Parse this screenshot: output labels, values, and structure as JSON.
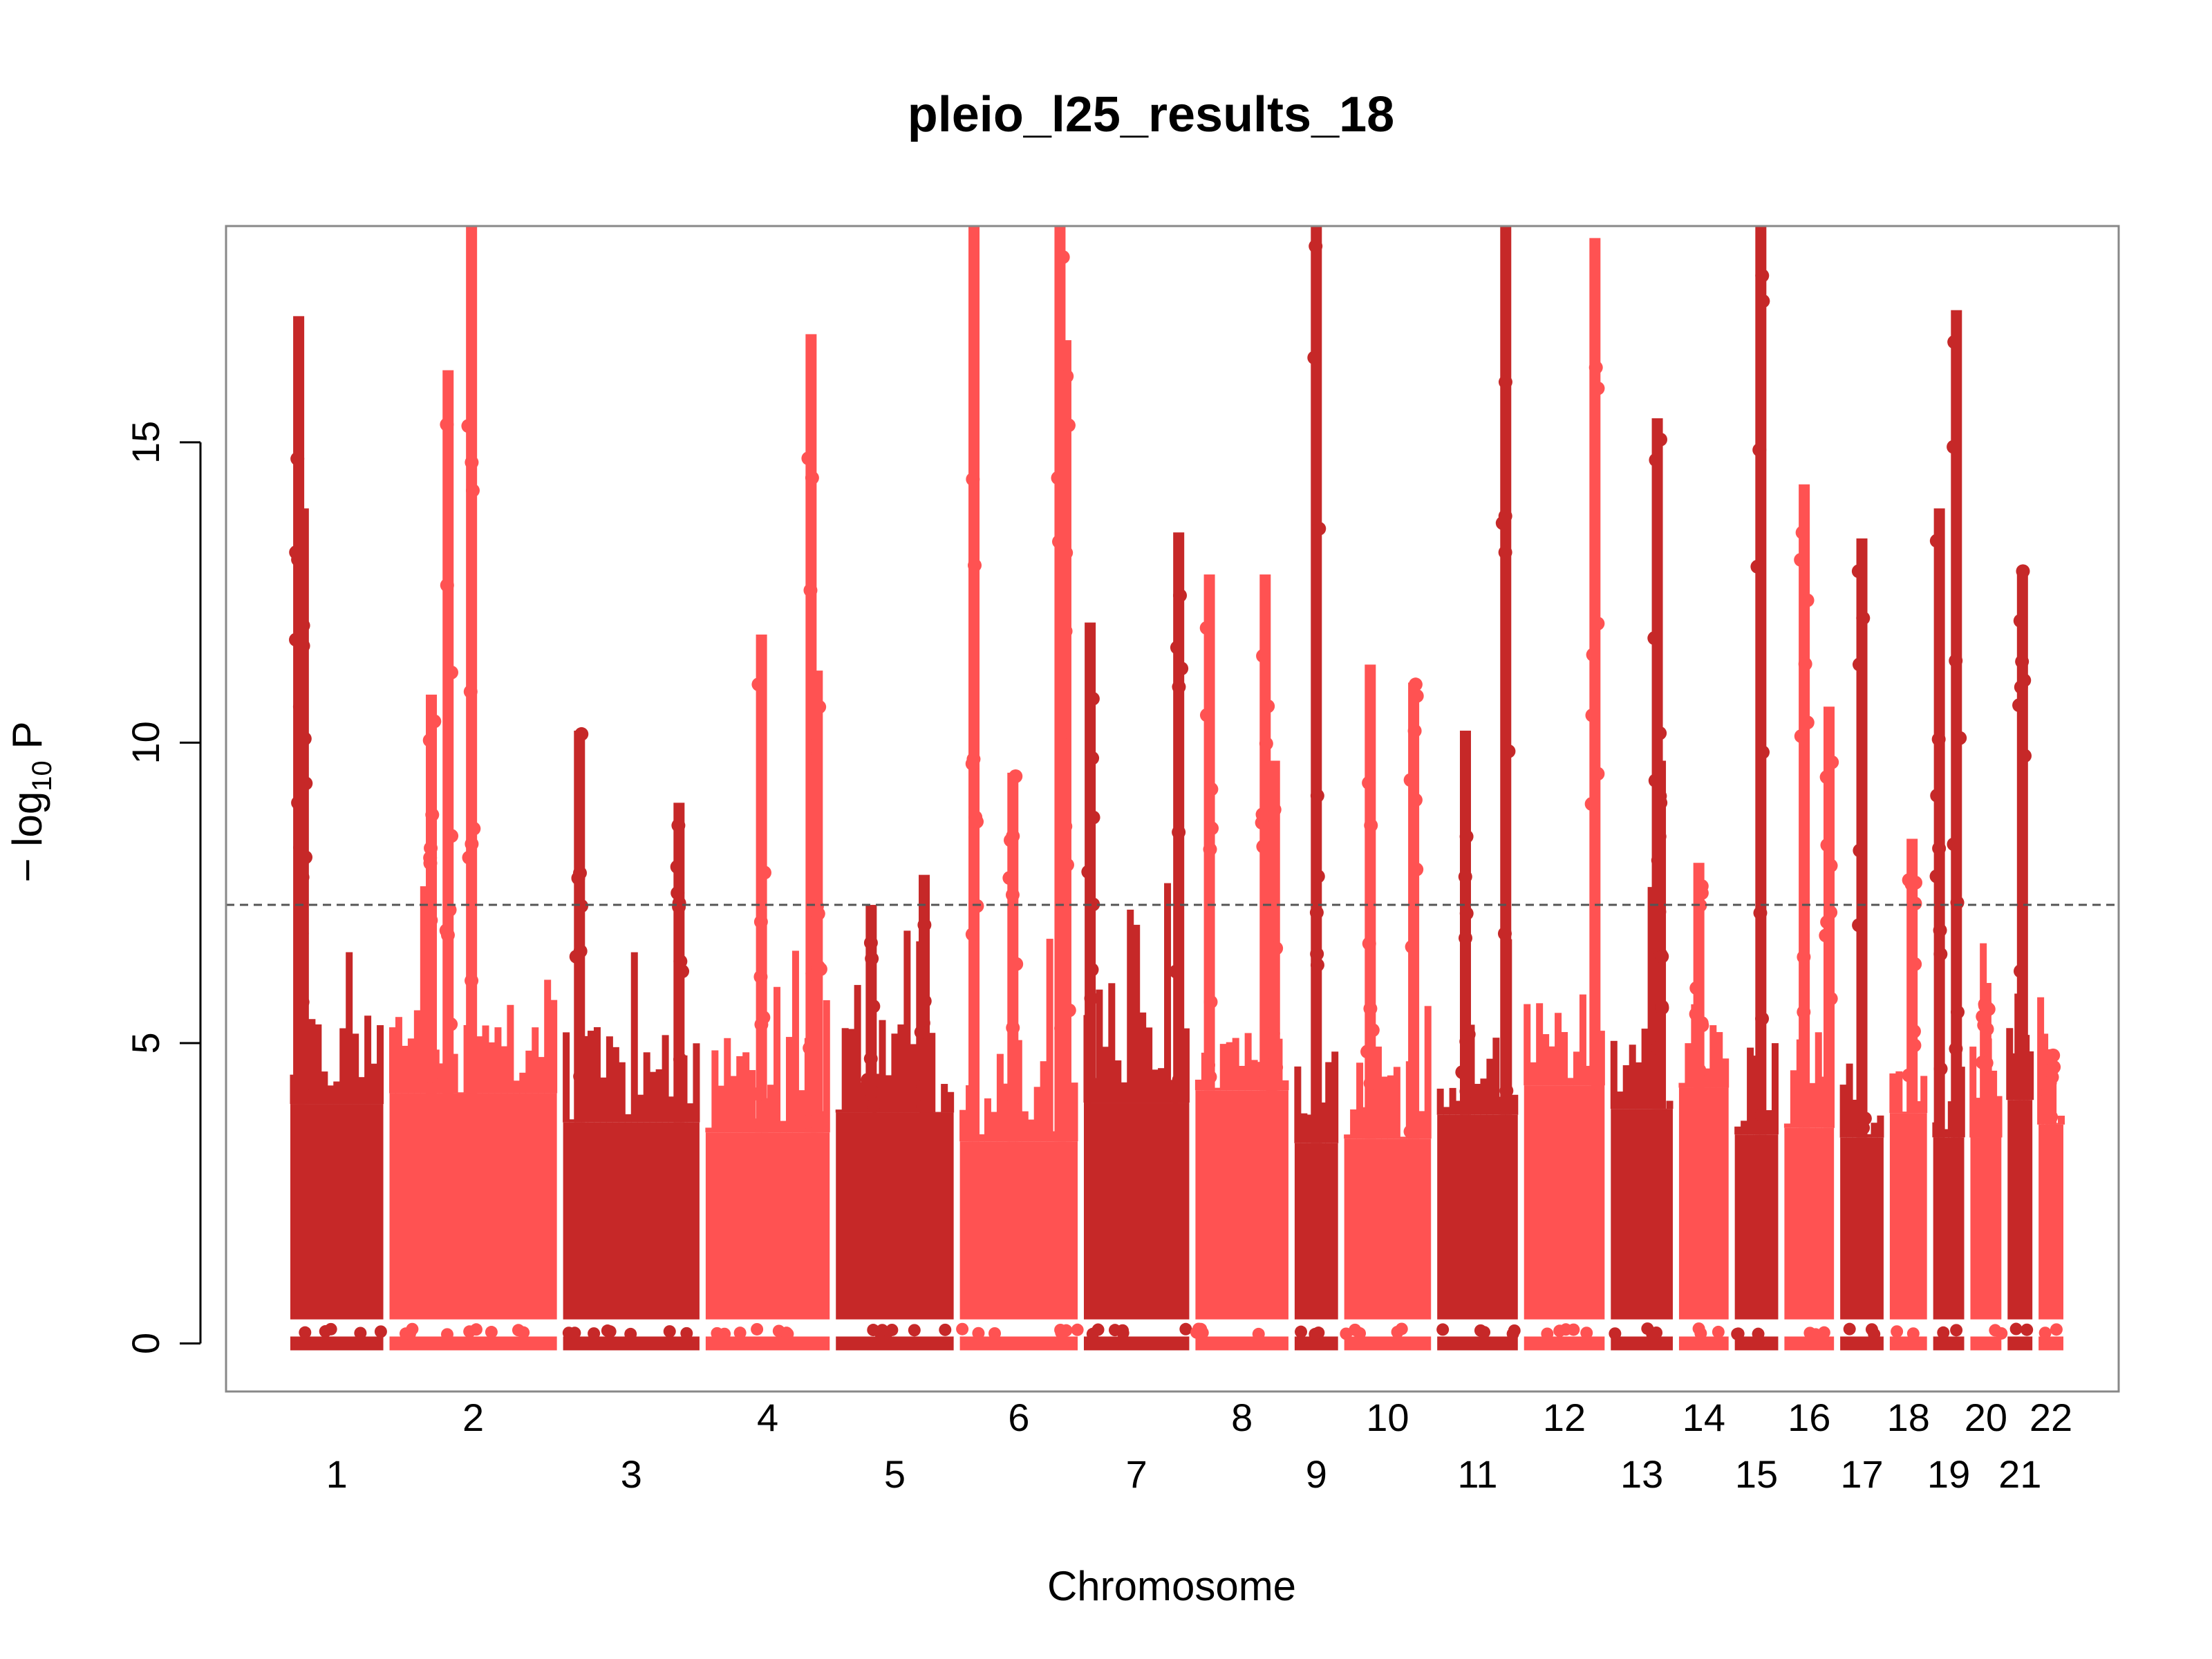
{
  "chart_data": {
    "type": "scatter",
    "subtype": "manhattan",
    "title": "pleio_l25_results_18",
    "xlabel": "Chromosome",
    "ylabel": "−log10 P",
    "ylabel_parts": {
      "prefix": "− log",
      "subscript": "10",
      "suffix": " P"
    },
    "ylim": [
      -0.8,
      18.6
    ],
    "yticks": [
      0,
      5,
      10,
      15
    ],
    "threshold": 7.3,
    "colors": {
      "odd": "#c62828",
      "even": "#ff5252",
      "threshold": "#555555",
      "frame": "#888888"
    },
    "chromosomes": [
      {
        "label": "1",
        "start": 0.0,
        "end": 0.15,
        "max": 17.1,
        "peaks": [
          [
            0.09,
            17.1
          ],
          [
            0.14,
            13.9
          ],
          [
            0.13,
            12.4
          ]
        ]
      },
      {
        "label": "2",
        "start": 0.16,
        "end": 0.43,
        "max": 18.6,
        "peaks": [
          [
            0.35,
            16.2
          ],
          [
            0.49,
            18.6
          ],
          [
            0.25,
            10.8
          ]
        ]
      },
      {
        "label": "3",
        "start": 0.44,
        "end": 0.66,
        "max": 10.2,
        "peaks": [
          [
            0.12,
            10.2
          ],
          [
            0.85,
            9.0
          ]
        ]
      },
      {
        "label": "4",
        "start": 0.67,
        "end": 0.87,
        "max": 16.8,
        "peaks": [
          [
            0.85,
            16.8
          ],
          [
            0.45,
            11.8
          ],
          [
            0.9,
            11.2
          ]
        ]
      },
      {
        "label": "5",
        "start": 0.88,
        "end": 1.07,
        "max": 8.0,
        "peaks": [
          [
            0.3,
            7.3
          ],
          [
            0.75,
            7.8
          ]
        ]
      },
      {
        "label": "6",
        "start": 1.08,
        "end": 1.27,
        "max": 18.6,
        "peaks": [
          [
            0.12,
            18.6
          ],
          [
            0.45,
            9.5
          ],
          [
            0.85,
            18.6
          ],
          [
            0.9,
            16.7
          ]
        ]
      },
      {
        "label": "7",
        "start": 1.28,
        "end": 1.45,
        "max": 13.5,
        "peaks": [
          [
            0.06,
            12.0
          ],
          [
            0.9,
            13.5
          ]
        ]
      },
      {
        "label": "8",
        "start": 1.46,
        "end": 1.61,
        "max": 12.8,
        "peaks": [
          [
            0.15,
            12.8
          ],
          [
            0.75,
            12.8
          ],
          [
            0.85,
            9.7
          ]
        ]
      },
      {
        "label": "9",
        "start": 1.62,
        "end": 1.69,
        "max": 18.6,
        "peaks": [
          [
            0.5,
            18.6
          ]
        ]
      },
      {
        "label": "10",
        "start": 1.7,
        "end": 1.84,
        "max": 11.3,
        "peaks": [
          [
            0.3,
            11.3
          ],
          [
            0.8,
            11.0
          ]
        ]
      },
      {
        "label": "11",
        "start": 1.85,
        "end": 1.98,
        "max": 18.6,
        "peaks": [
          [
            0.35,
            10.2
          ],
          [
            0.85,
            18.6
          ]
        ]
      },
      {
        "label": "12",
        "start": 1.99,
        "end": 2.12,
        "max": 18.4,
        "peaks": [
          [
            0.88,
            18.4
          ]
        ]
      },
      {
        "label": "13",
        "start": 2.13,
        "end": 2.23,
        "max": 15.4,
        "peaks": [
          [
            0.75,
            15.4
          ],
          [
            0.8,
            9.7
          ]
        ]
      },
      {
        "label": "14",
        "start": 2.24,
        "end": 2.32,
        "max": 8.0,
        "peaks": [
          [
            0.4,
            8.0
          ]
        ]
      },
      {
        "label": "15",
        "start": 2.33,
        "end": 2.4,
        "max": 18.6,
        "peaks": [
          [
            0.6,
            18.6
          ]
        ]
      },
      {
        "label": "16",
        "start": 2.41,
        "end": 2.49,
        "max": 14.3,
        "peaks": [
          [
            0.4,
            14.3
          ],
          [
            0.9,
            10.6
          ]
        ]
      },
      {
        "label": "17",
        "start": 2.5,
        "end": 2.57,
        "max": 13.4,
        "peaks": [
          [
            0.5,
            13.4
          ]
        ]
      },
      {
        "label": "18",
        "start": 2.58,
        "end": 2.64,
        "max": 8.4,
        "peaks": [
          [
            0.6,
            8.4
          ]
        ]
      },
      {
        "label": "19",
        "start": 2.65,
        "end": 2.7,
        "max": 17.2,
        "peaks": [
          [
            0.2,
            13.9
          ],
          [
            0.75,
            17.2
          ]
        ]
      },
      {
        "label": "20",
        "start": 2.71,
        "end": 2.76,
        "max": 6.0,
        "peaks": [
          [
            0.5,
            6.0
          ]
        ]
      },
      {
        "label": "21",
        "start": 2.77,
        "end": 2.81,
        "max": 12.9,
        "peaks": [
          [
            0.6,
            12.9
          ]
        ]
      },
      {
        "label": "22",
        "start": 2.82,
        "end": 2.86,
        "max": 5.0,
        "peaks": [
          [
            0.5,
            4.8
          ]
        ]
      }
    ]
  }
}
